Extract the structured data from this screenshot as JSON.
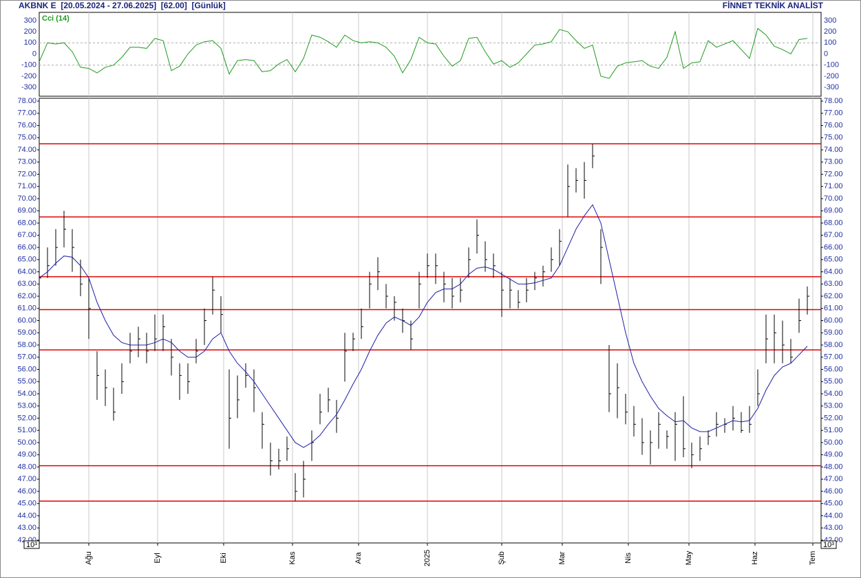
{
  "header": {
    "left": "AKBNK E  [20.05.2024 - 27.06.2025]  [62.00]  [Günlük]",
    "right": "FİNNET TEKNİK ANALİST"
  },
  "chart_data": [
    {
      "type": "line",
      "label": "Cci (14)",
      "color": "#1e9a1e",
      "x": [
        0,
        3,
        6,
        9,
        12,
        15,
        18,
        21,
        24,
        27,
        30,
        33,
        36,
        39,
        42,
        45,
        48,
        51,
        54,
        57,
        60,
        63,
        66,
        69,
        72,
        75,
        78,
        81,
        84,
        87,
        90,
        93,
        96,
        99,
        102,
        105,
        108,
        111,
        114,
        117,
        120,
        123,
        126,
        129,
        132,
        135,
        138,
        141,
        144,
        147,
        150,
        153,
        156,
        159,
        162,
        165,
        168,
        171,
        174,
        177,
        180,
        183,
        186,
        189,
        192,
        195,
        198,
        201,
        204,
        207,
        210,
        213,
        216,
        219,
        222,
        225,
        228,
        231,
        234,
        237,
        240,
        243,
        246,
        249,
        252,
        255,
        258,
        261,
        264,
        267,
        270,
        273,
        276,
        279
      ],
      "values": [
        -70,
        100,
        90,
        100,
        20,
        -120,
        -130,
        -170,
        -120,
        -100,
        -30,
        60,
        60,
        50,
        140,
        120,
        -150,
        -110,
        0,
        80,
        110,
        120,
        50,
        -180,
        -60,
        -50,
        -60,
        -160,
        -150,
        -90,
        -50,
        -160,
        -40,
        170,
        150,
        110,
        60,
        170,
        120,
        100,
        110,
        100,
        60,
        -20,
        -170,
        -50,
        150,
        100,
        90,
        -20,
        -110,
        -60,
        140,
        150,
        20,
        -90,
        -60,
        -120,
        -80,
        0,
        80,
        90,
        110,
        220,
        200,
        120,
        50,
        80,
        -200,
        -220,
        -110,
        -80,
        -70,
        -60,
        -110,
        -130,
        -30,
        200,
        -130,
        -80,
        -70,
        120,
        60,
        90,
        120,
        40,
        -40,
        230,
        170,
        70,
        40,
        0,
        130,
        140
      ],
      "xlim": [
        0,
        284
      ],
      "ylim": [
        -380,
        374
      ],
      "yticks": [
        300,
        200,
        100,
        0,
        -100,
        -200,
        -300
      ],
      "dashed_lines": [
        100,
        -100
      ]
    },
    {
      "type": "ohlc",
      "x": [
        0,
        3,
        6,
        9,
        12,
        15,
        18,
        21,
        24,
        27,
        30,
        33,
        36,
        39,
        42,
        45,
        48,
        51,
        54,
        57,
        60,
        63,
        66,
        69,
        72,
        75,
        78,
        81,
        84,
        87,
        90,
        93,
        96,
        99,
        102,
        105,
        108,
        111,
        114,
        117,
        120,
        123,
        126,
        129,
        132,
        135,
        138,
        141,
        144,
        147,
        150,
        153,
        156,
        159,
        162,
        165,
        168,
        171,
        174,
        177,
        180,
        183,
        186,
        189,
        192,
        195,
        198,
        201,
        204,
        207,
        210,
        213,
        216,
        219,
        222,
        225,
        228,
        231,
        234,
        237,
        240,
        243,
        246,
        249,
        252,
        255,
        258,
        261,
        264,
        267,
        270,
        273,
        276,
        279
      ],
      "high": [
        64.5,
        66,
        67.5,
        69,
        67.5,
        65,
        63.5,
        57.5,
        56,
        54.5,
        56.5,
        59,
        59.5,
        59,
        60.5,
        60.5,
        58.5,
        56.5,
        56.5,
        58.5,
        61,
        63.6,
        62,
        56,
        55.5,
        56.5,
        56,
        52.5,
        50,
        49.5,
        50.5,
        47.5,
        48.5,
        51,
        54,
        54.5,
        53.5,
        59,
        59,
        61,
        64,
        65.2,
        63,
        62,
        61,
        60,
        64,
        65.5,
        65.5,
        64,
        63.5,
        63.5,
        66,
        68.3,
        66.5,
        65.5,
        64,
        63.5,
        62.5,
        63.5,
        64,
        64.5,
        66,
        67.5,
        72.8,
        72.5,
        73,
        74.5,
        67.5,
        58,
        56.5,
        54,
        53,
        52,
        51,
        52.5,
        51,
        52.5,
        53.8,
        50,
        50.5,
        51,
        52.5,
        52,
        53,
        52.5,
        53,
        56,
        60.5,
        60.5,
        60,
        58.5,
        61.8,
        62.8
      ],
      "low": [
        62.8,
        63.5,
        64.5,
        66,
        64,
        62,
        58.5,
        53.5,
        53,
        51.8,
        54,
        56.5,
        57,
        56.5,
        57.5,
        57.5,
        55.5,
        53.5,
        54,
        56.5,
        58,
        60.5,
        59,
        49.5,
        52,
        54.5,
        52.5,
        49.5,
        47.3,
        47.8,
        48.5,
        45.2,
        45.5,
        48.5,
        51.5,
        52.5,
        50.8,
        55,
        57.5,
        58.5,
        61,
        62.5,
        61,
        60,
        59,
        57.6,
        61,
        63.5,
        63,
        61.5,
        61,
        61.5,
        63.5,
        65.5,
        64,
        63.5,
        60.3,
        61,
        61,
        61.5,
        62.5,
        62.8,
        64,
        64.5,
        68.5,
        70.5,
        70,
        72.5,
        63,
        52.5,
        52,
        51.5,
        50.5,
        49,
        48.2,
        49.5,
        49.5,
        48.5,
        48.8,
        47.9,
        48.5,
        49.8,
        50.5,
        50.8,
        51,
        50.8,
        50.8,
        53,
        56.5,
        56.5,
        56.5,
        56.5,
        59,
        60.5
      ],
      "close": [
        63.5,
        64.5,
        66,
        67.5,
        66,
        63,
        61,
        55.5,
        54.5,
        52.5,
        55,
        57.5,
        58.5,
        57.5,
        58.5,
        59.5,
        57,
        55.5,
        55,
        57.5,
        60,
        62.5,
        60.5,
        52,
        53.5,
        55.5,
        54.5,
        51.5,
        48.5,
        48.5,
        49.5,
        46,
        47,
        50,
        52.5,
        53.5,
        52,
        57.5,
        58.5,
        59.5,
        63,
        64,
        62,
        61.5,
        60,
        58.5,
        63,
        64.5,
        64.5,
        63,
        62,
        62.5,
        65,
        67,
        65,
        64.5,
        62.5,
        62.5,
        61.5,
        62.5,
        63.5,
        64,
        65,
        66.5,
        71,
        71.5,
        71.5,
        73.5,
        66,
        54,
        54.5,
        52.5,
        51.5,
        50,
        50,
        51.5,
        50.5,
        51.5,
        49.5,
        49,
        49.5,
        50.5,
        51.5,
        51.5,
        52,
        51,
        51.5,
        54,
        58.5,
        59,
        58,
        57,
        60,
        62
      ],
      "bar_color": "#000000",
      "ma": {
        "color": "#1c1ca8",
        "values": [
          63.5,
          64,
          64.7,
          65.3,
          65.2,
          64.5,
          63.5,
          61.5,
          60,
          58.8,
          58.2,
          58,
          58,
          58,
          58.2,
          58.5,
          58.2,
          57.5,
          57,
          57,
          57.5,
          58.5,
          59,
          57.5,
          56.5,
          55.8,
          55,
          54,
          53,
          52,
          51,
          50,
          49.6,
          50,
          50.6,
          51.5,
          52.3,
          53.5,
          54.8,
          56,
          57.5,
          58.8,
          59.8,
          60.3,
          60,
          59.6,
          60.3,
          61.5,
          62.3,
          62.6,
          62.6,
          63,
          63.8,
          64.3,
          64.4,
          64.2,
          63.8,
          63.4,
          63,
          63,
          63.1,
          63.3,
          63.5,
          64.5,
          66,
          67.5,
          68.6,
          69.5,
          68,
          65,
          62,
          59,
          56.5,
          55,
          53.8,
          52.8,
          52.2,
          51.7,
          51.8,
          51.2,
          50.9,
          50.9,
          51.2,
          51.5,
          51.8,
          51.7,
          51.8,
          52.8,
          54.3,
          55.5,
          56.2,
          56.5,
          57.2,
          57.9
        ]
      },
      "levels": [
        74.5,
        68.5,
        63.6,
        60.9,
        57.6,
        48.1,
        45.2
      ],
      "level_color": "#e00000",
      "xlim": [
        0,
        284
      ],
      "ylim": [
        41.77,
        78.23
      ],
      "xticks": [
        {
          "value": 18,
          "label": "Ağu"
        },
        {
          "value": 43,
          "label": "Eyl"
        },
        {
          "value": 67,
          "label": "Eki"
        },
        {
          "value": 92,
          "label": "Kas"
        },
        {
          "value": 116,
          "label": "Ara"
        },
        {
          "value": 141,
          "label": "2025"
        },
        {
          "value": 168,
          "label": "Şub"
        },
        {
          "value": 190,
          "label": "Mar"
        },
        {
          "value": 214,
          "label": "Nis"
        },
        {
          "value": 236,
          "label": "May"
        },
        {
          "value": 260,
          "label": "Haz"
        },
        {
          "value": 281,
          "label": "Tem"
        }
      ],
      "yticks": [
        {
          "value": 42,
          "label": "42.00"
        },
        {
          "value": 43,
          "label": "43.00"
        },
        {
          "value": 44,
          "label": "44.00"
        },
        {
          "value": 45,
          "label": "45.00"
        },
        {
          "value": 46,
          "label": "46.00"
        },
        {
          "value": 47,
          "label": "47.00"
        },
        {
          "value": 48,
          "label": "48.00"
        },
        {
          "value": 49,
          "label": "49.00"
        },
        {
          "value": 50,
          "label": "50.00"
        },
        {
          "value": 51,
          "label": "51.00"
        },
        {
          "value": 52,
          "label": "52.00"
        },
        {
          "value": 53,
          "label": "53.00"
        },
        {
          "value": 54,
          "label": "54.00"
        },
        {
          "value": 55,
          "label": "55.00"
        },
        {
          "value": 56,
          "label": "56.00"
        },
        {
          "value": 57,
          "label": "57.00"
        },
        {
          "value": 58,
          "label": "58.00"
        },
        {
          "value": 59,
          "label": "59.00"
        },
        {
          "value": 60,
          "label": "60.00"
        },
        {
          "value": 61,
          "label": "61.00"
        },
        {
          "value": 62,
          "label": "62.00"
        },
        {
          "value": 63,
          "label": "63.00"
        },
        {
          "value": 64,
          "label": "64.00"
        },
        {
          "value": 65,
          "label": "65.00"
        },
        {
          "value": 66,
          "label": "66.00"
        },
        {
          "value": 67,
          "label": "67.00"
        },
        {
          "value": 68,
          "label": "68.00"
        },
        {
          "value": 69,
          "label": "69.00"
        },
        {
          "value": 70,
          "label": "70.00"
        },
        {
          "value": 71,
          "label": "71.00"
        },
        {
          "value": 72,
          "label": "72.00"
        },
        {
          "value": 73,
          "label": "73.00"
        },
        {
          "value": 74,
          "label": "74.00"
        },
        {
          "value": 75,
          "label": "75.00"
        },
        {
          "value": 76,
          "label": "76.00"
        },
        {
          "value": 77,
          "label": "77.00"
        },
        {
          "value": 78,
          "label": "78.00"
        }
      ],
      "axis_note": "10³"
    }
  ]
}
